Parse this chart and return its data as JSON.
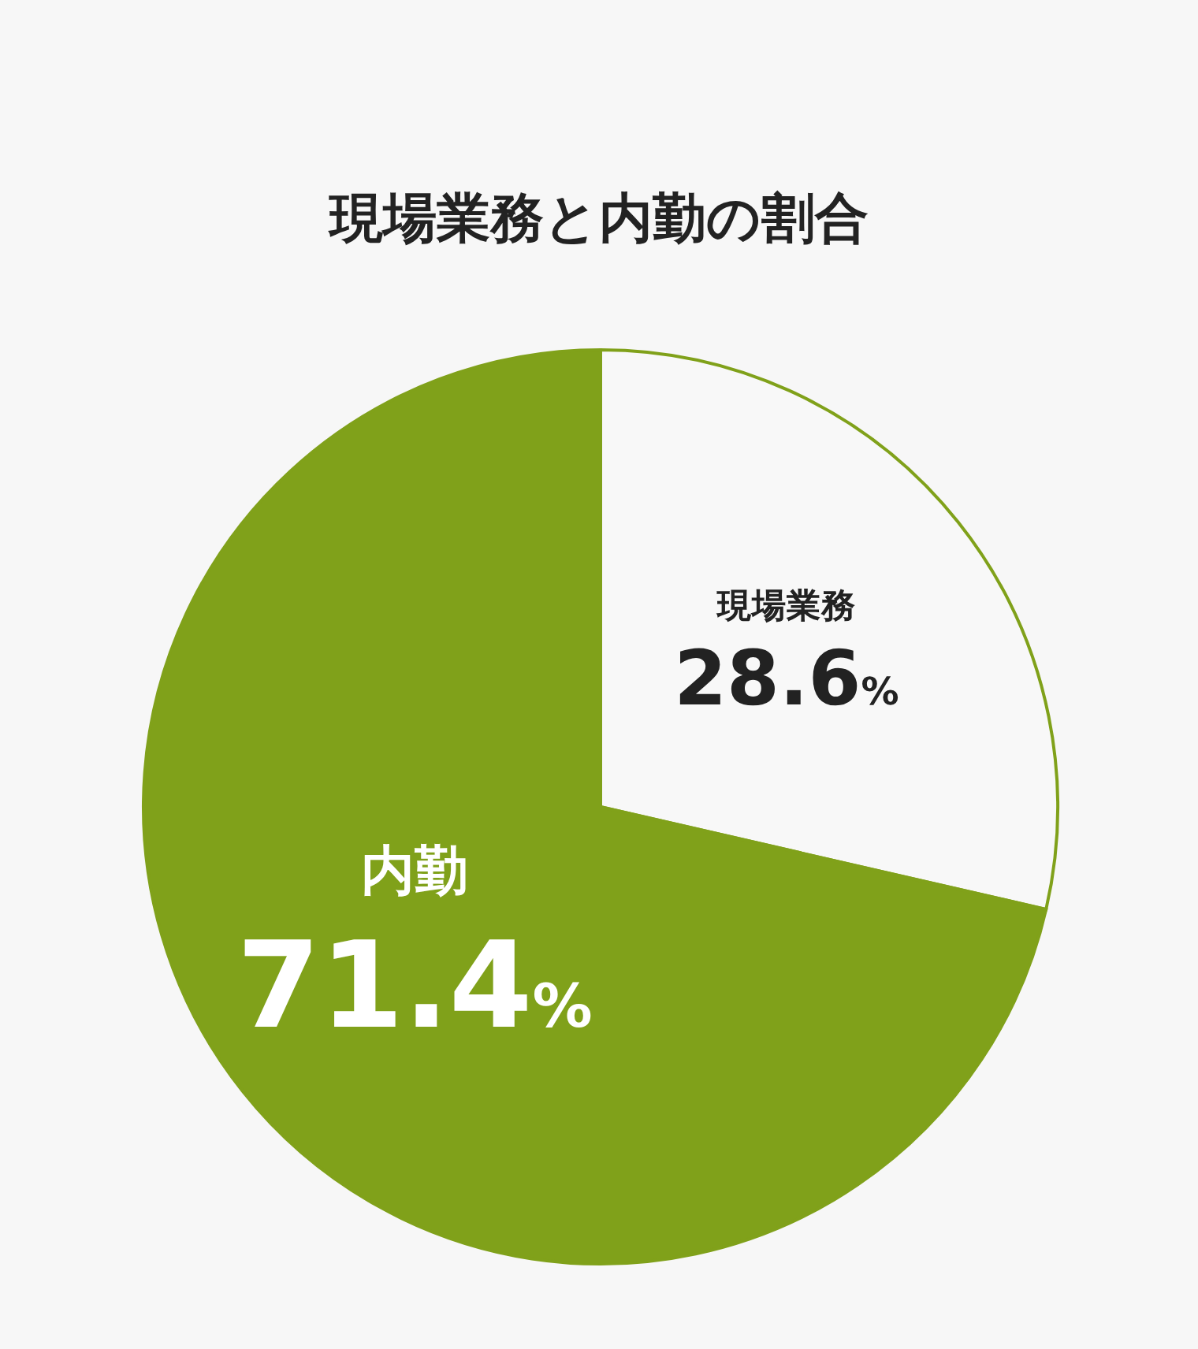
{
  "chart_data": {
    "type": "pie",
    "title": "現場業務と内勤の割合",
    "categories": [
      "現場業務",
      "内勤"
    ],
    "values": [
      28.6,
      71.4
    ],
    "value_labels": [
      "28.6%",
      "71.4%"
    ],
    "colors": [
      "#f8f8f8",
      "#80a11a"
    ]
  }
}
